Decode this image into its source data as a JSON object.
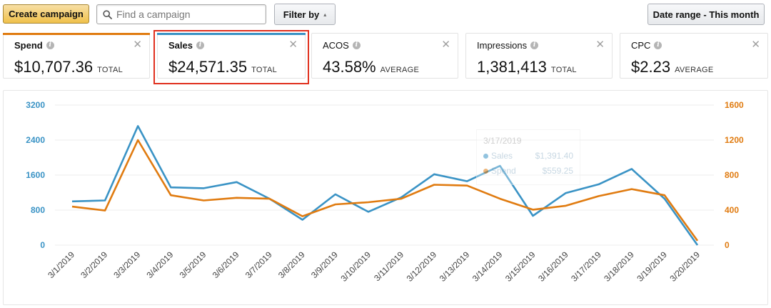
{
  "toolbar": {
    "create_label": "Create campaign",
    "search_placeholder": "Find a campaign",
    "filter_label": "Filter by",
    "date_range_label": "Date range - This month"
  },
  "metrics": [
    {
      "label": "Spend",
      "value": "$10,707.36",
      "unit": "TOTAL",
      "bar_color": "#e07b10"
    },
    {
      "label": "Sales",
      "value": "$24,571.35",
      "unit": "TOTAL",
      "bar_color": "#3a93c5"
    },
    {
      "label": "ACOS",
      "value": "43.58%",
      "unit": "AVERAGE"
    },
    {
      "label": "Impressions",
      "value": "1,381,413",
      "unit": "TOTAL"
    },
    {
      "label": "CPC",
      "value": "$2.23",
      "unit": "AVERAGE"
    }
  ],
  "tooltip": {
    "date": "3/17/2019",
    "sales_label": "Sales",
    "sales_value": "$1,391.40",
    "spend_label": "Spend",
    "spend_value": "$559.25"
  },
  "chart_data": {
    "type": "line",
    "x": [
      "3/1/2019",
      "3/2/2019",
      "3/3/2019",
      "3/4/2019",
      "3/5/2019",
      "3/6/2019",
      "3/7/2019",
      "3/8/2019",
      "3/9/2019",
      "3/10/2019",
      "3/11/2019",
      "3/12/2019",
      "3/13/2019",
      "3/14/2019",
      "3/15/2019",
      "3/16/2019",
      "3/17/2019",
      "3/18/2019",
      "3/19/2019",
      "3/20/2019"
    ],
    "series": [
      {
        "name": "Sales",
        "axis": "left",
        "color": "#3a93c5",
        "values": [
          1000,
          1020,
          2720,
          1320,
          1300,
          1440,
          1060,
          580,
          1160,
          760,
          1090,
          1620,
          1460,
          1810,
          670,
          1190,
          1390,
          1740,
          1060,
          0
        ]
      },
      {
        "name": "Spend",
        "axis": "right",
        "color": "#e07b10",
        "values": [
          440,
          395,
          1200,
          570,
          510,
          540,
          530,
          330,
          465,
          490,
          530,
          690,
          680,
          530,
          405,
          450,
          560,
          640,
          570,
          50
        ]
      }
    ],
    "y_left": {
      "ticks": [
        0,
        800,
        1600,
        2400,
        3200
      ],
      "lim": [
        0,
        3200
      ]
    },
    "y_right": {
      "ticks": [
        0,
        400,
        800,
        1200,
        1600
      ],
      "lim": [
        0,
        1600
      ]
    },
    "grid": true
  }
}
